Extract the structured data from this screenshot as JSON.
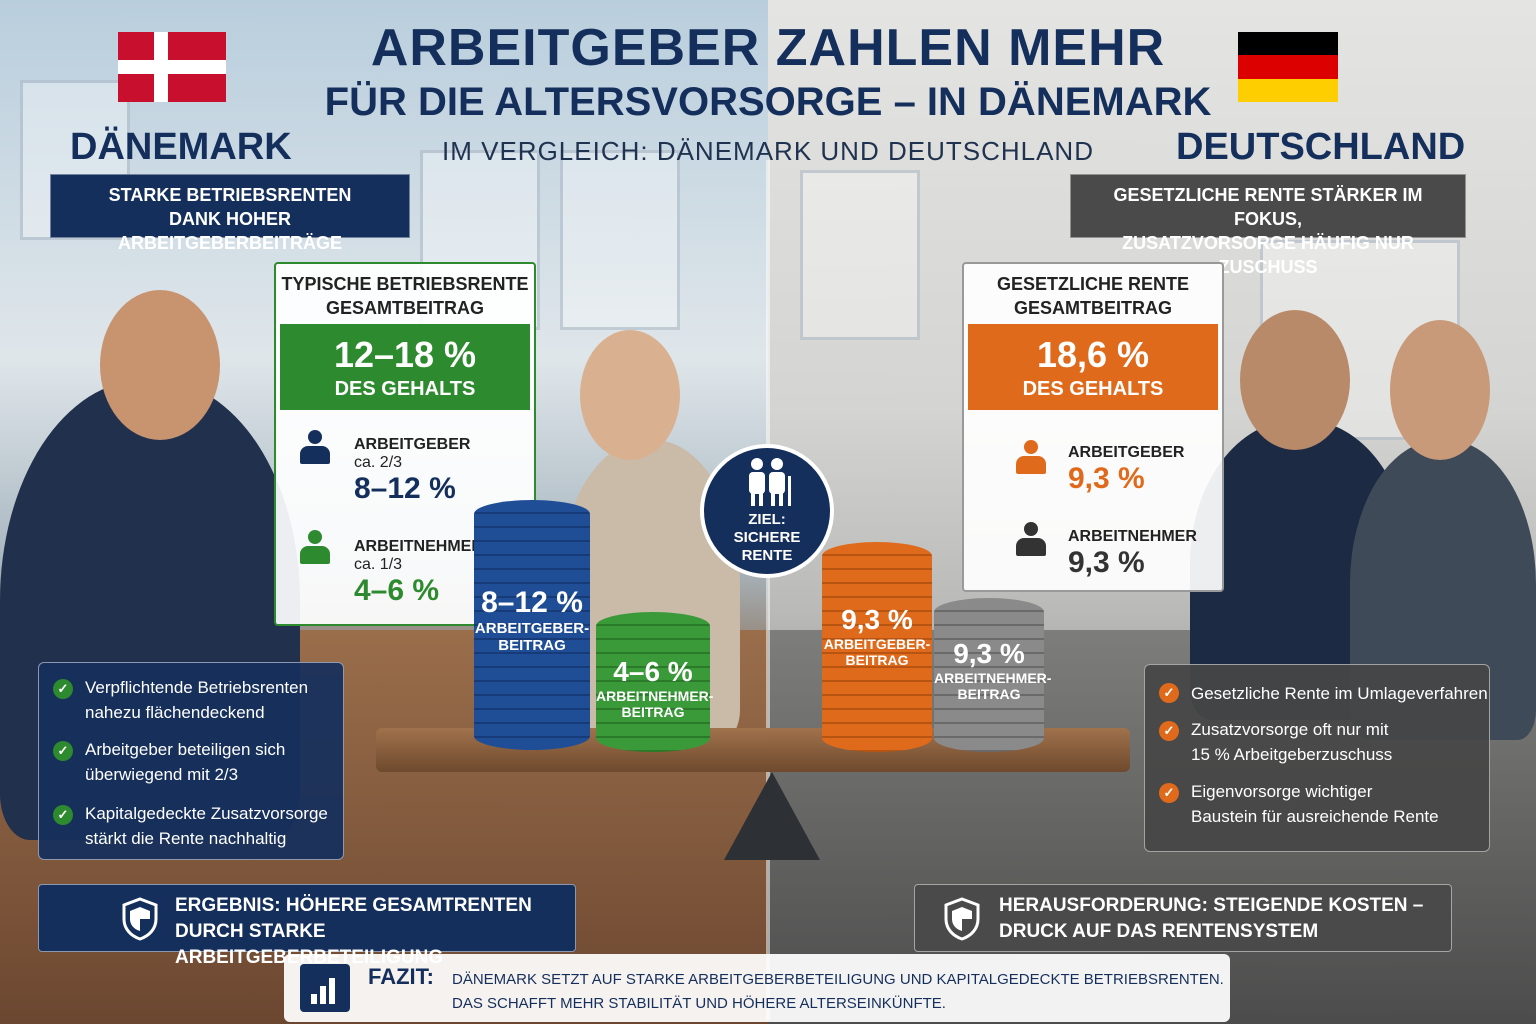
{
  "title": {
    "line1": "ARBEITGEBER ZAHLEN MEHR",
    "line2": "FÜR DIE ALTERSVORSORGE – IN DÄNEMARK",
    "subtitle": "IM VERGLEICH: DÄNEMARK UND DEUTSCHLAND"
  },
  "colors": {
    "navy": "#152f5c",
    "green": "#2e8a2e",
    "orange": "#e06a1b",
    "gray": "#6e6e6e",
    "dk_red": "#c8102e"
  },
  "denmark": {
    "country": "DÄNEMARK",
    "tagline_1": "STARKE BETRIEBSRENTEN",
    "tagline_2": "DANK HOHER ARBEITGEBERBEITRÄGE",
    "panel_title_1": "TYPISCHE BETRIEBSRENTE",
    "panel_title_2": "GESAMTBEITRAG",
    "total_value": "12–18 %",
    "total_caption": "DES GEHALTS",
    "employer_label": "ARBEITGEBER",
    "employer_share": "ca. 2/3",
    "employer_value": "8–12 %",
    "employee_label": "ARBEITNEHMER",
    "employee_share": "ca. 1/3",
    "employee_value": "4–6 %",
    "stack_employer_value": "8–12 %",
    "stack_employer_label_1": "ARBEITGEBER-",
    "stack_employer_label_2": "BEITRAG",
    "stack_employee_value": "4–6 %",
    "stack_employee_label_1": "ARBEITNEHMER-",
    "stack_employee_label_2": "BEITRAG",
    "bullets": [
      {
        "l1": "Verpflichtende Betriebsrenten",
        "l2": "nahezu flächendeckend"
      },
      {
        "l1": "Arbeitgeber beteiligen sich",
        "l2": "überwiegend mit 2/3"
      },
      {
        "l1": "Kapitalgedeckte Zusatzvorsorge",
        "l2": "stärkt die Rente nachhaltig"
      }
    ],
    "result_1": "ERGEBNIS: HÖHERE GESAMTRENTEN",
    "result_2": "DURCH STARKE ARBEITGEBERBETEILIGUNG"
  },
  "germany": {
    "country": "DEUTSCHLAND",
    "tagline_1": "GESETZLICHE RENTE STÄRKER IM FOKUS,",
    "tagline_2": "ZUSATZVORSORGE HÄUFIG NUR ZUSCHUSS",
    "panel_title_1": "GESETZLICHE RENTE",
    "panel_title_2": "GESAMTBEITRAG",
    "total_value": "18,6 %",
    "total_caption": "DES GEHALTS",
    "employer_label": "ARBEITGEBER",
    "employer_value": "9,3 %",
    "employee_label": "ARBEITNEHMER",
    "employee_value": "9,3 %",
    "stack_employer_value": "9,3 %",
    "stack_employer_label_1": "ARBEITGEBER-",
    "stack_employer_label_2": "BEITRAG",
    "stack_employee_value": "9,3 %",
    "stack_employee_label_1": "ARBEITNEHMER-",
    "stack_employee_label_2": "BEITRAG",
    "bullets": [
      {
        "l1": "Gesetzliche Rente im Umlageverfahren",
        "l2": ""
      },
      {
        "l1": "Zusatzvorsorge oft nur mit",
        "l2": "15 % Arbeitgeberzuschuss"
      },
      {
        "l1": "Eigenvorsorge wichtiger",
        "l2": "Baustein für ausreichende Rente"
      }
    ],
    "challenge_1": "HERAUSFORDERUNG: STEIGENDE KOSTEN –",
    "challenge_2": "DRUCK AUF DAS RENTENSYSTEM"
  },
  "goal": {
    "line1": "ZIEL:",
    "line2": "SICHERE",
    "line3": "RENTE"
  },
  "fazit": {
    "label": "FAZIT:",
    "line1": "DÄNEMARK SETZT AUF STARKE ARBEITGEBERBETEILIGUNG UND KAPITALGEDECKTE BETRIEBSRENTEN.",
    "line2": "DAS SCHAFFT MEHR STABILITÄT UND HÖHERE ALTERSEINKÜNFTE."
  },
  "icons": [
    "flag-denmark",
    "flag-germany",
    "user-icon",
    "seniors-icon",
    "check-icon",
    "shield-icon",
    "bar-chart-icon",
    "balance-scale"
  ]
}
